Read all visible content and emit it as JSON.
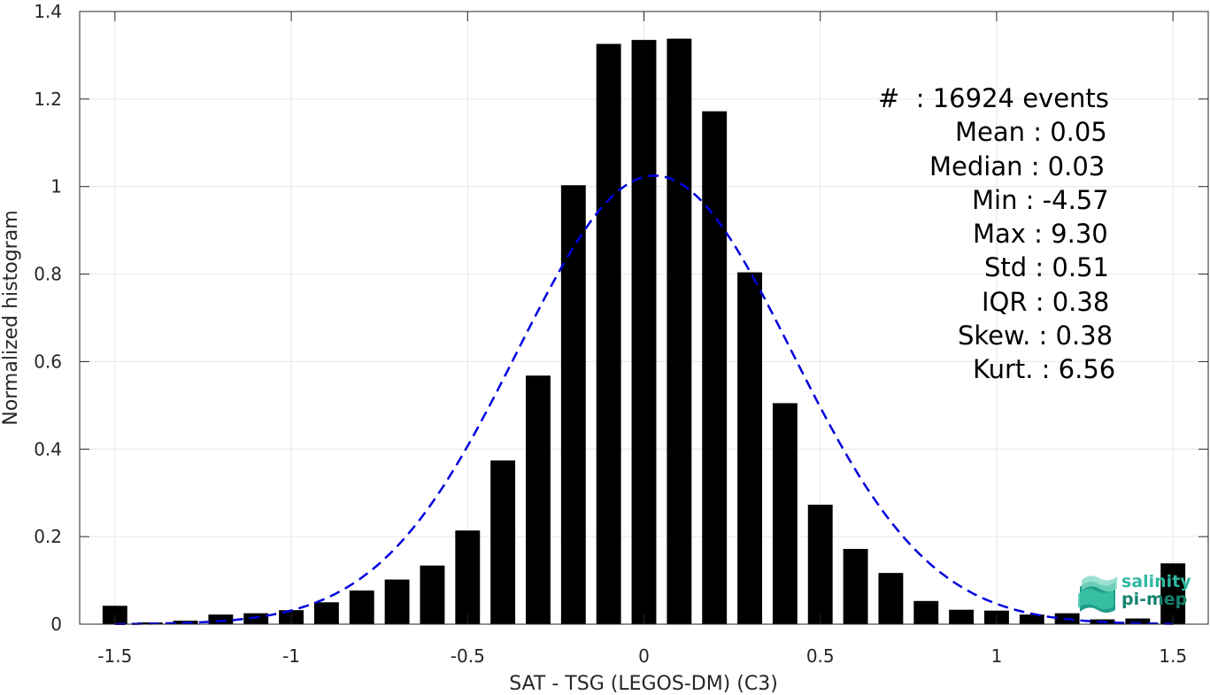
{
  "chart_data": {
    "type": "bar",
    "xlabel": "SAT - TSG (LEGOS-DM) (C3)",
    "ylabel": "Normalized histogram",
    "xlim": [
      -1.6,
      1.6
    ],
    "ylim": [
      0,
      1.4
    ],
    "xticks": [
      "-1.5",
      "-1",
      "-0.5",
      "0",
      "0.5",
      "1",
      "1.5"
    ],
    "yticks": [
      "0",
      "0.2",
      "0.4",
      "0.6",
      "0.8",
      "1",
      "1.2",
      "1.4"
    ],
    "grid": true,
    "bins": {
      "x": [
        -1.5,
        -1.4,
        -1.3,
        -1.2,
        -1.1,
        -1.0,
        -0.9,
        -0.8,
        -0.7,
        -0.6,
        -0.5,
        -0.4,
        -0.3,
        -0.2,
        -0.1,
        0.0,
        0.1,
        0.2,
        0.3,
        0.4,
        0.5,
        0.6,
        0.7,
        0.8,
        0.9,
        1.0,
        1.1,
        1.2,
        1.3,
        1.4,
        1.5
      ],
      "values": [
        0.042,
        0.004,
        0.008,
        0.022,
        0.025,
        0.032,
        0.05,
        0.077,
        0.102,
        0.134,
        0.214,
        0.374,
        0.568,
        1.003,
        1.326,
        1.335,
        1.338,
        1.172,
        0.804,
        0.505,
        0.273,
        0.172,
        0.117,
        0.053,
        0.033,
        0.031,
        0.022,
        0.025,
        0.011,
        0.013,
        0.139
      ],
      "color": "#000000"
    },
    "fit": {
      "style": "dashed",
      "color": "#0000dd",
      "mean": 0.03,
      "std": 0.39,
      "peak": 1.025
    },
    "stats": [
      "#  : 16924 events",
      "Mean : 0.05",
      "Median : 0.03",
      "Min : -4.57",
      "Max : 9.30",
      "Std : 0.51",
      "IQR : 0.38",
      "Skew. : 0.38",
      "Kurt. : 6.56"
    ]
  },
  "logo": {
    "line1": "salinity",
    "line2": "pi-mep"
  }
}
